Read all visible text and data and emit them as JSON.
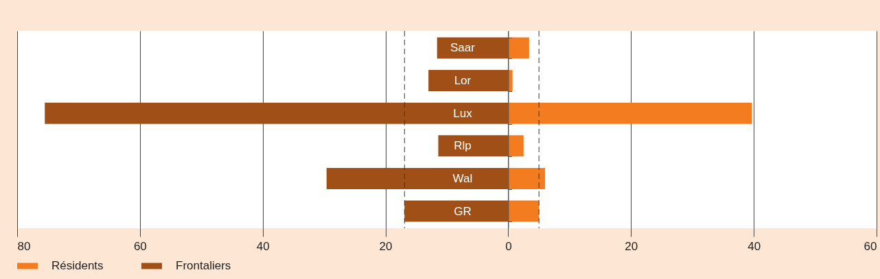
{
  "chart_data": {
    "type": "bar",
    "orientation": "horizontal",
    "stacked": true,
    "categories": [
      "Saar",
      "Lor",
      "Lux",
      "Rlp",
      "Wal",
      "GR"
    ],
    "series": [
      {
        "name": "Résidents",
        "color": "#f47c20",
        "values": [
          3.4,
          0.7,
          39.7,
          2.5,
          6.0,
          5.0
        ]
      },
      {
        "name": "Frontaliers",
        "color": "#a05016",
        "values": [
          -11.6,
          -13.0,
          -75.5,
          -11.4,
          -29.6,
          -16.9
        ]
      }
    ],
    "xlim": [
      -80,
      60
    ],
    "xticks": [
      {
        "value": -80,
        "label": "80"
      },
      {
        "value": -60,
        "label": "60"
      },
      {
        "value": -40,
        "label": "40"
      },
      {
        "value": -20,
        "label": "20"
      },
      0,
      20,
      40,
      60
    ],
    "ref_lines": [
      {
        "axis": "x",
        "value": -16.9,
        "line_style": "dashed"
      },
      {
        "axis": "x",
        "value": 5.0,
        "line_style": "dashed"
      }
    ],
    "grid": "x",
    "legend": "bottom left"
  }
}
